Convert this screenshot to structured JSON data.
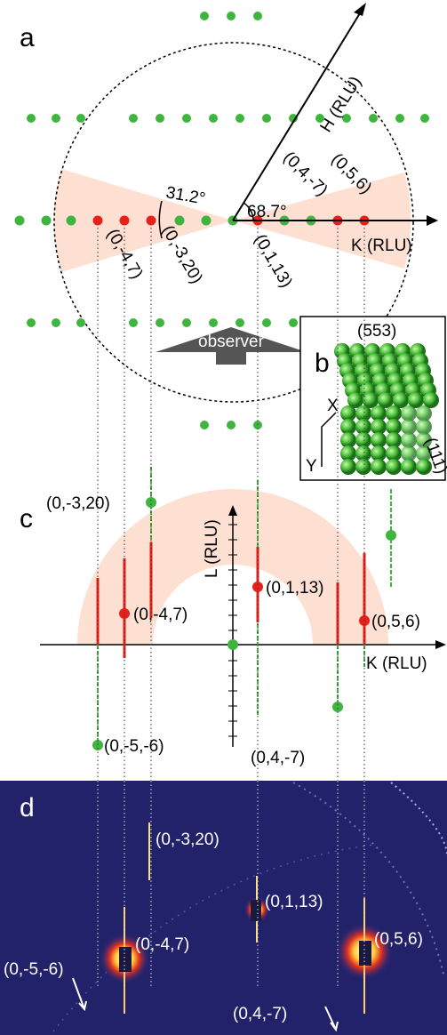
{
  "panel_a": {
    "label": "a",
    "h_axis": "H (RLU)",
    "k_axis": "K (RLU)",
    "angle_h": "68.7°",
    "angle_wedge": "31.2°",
    "observer": "observer",
    "reflections": [
      "(0,4,-7)",
      "(0,5,6)",
      "(0,-4,7)",
      "(0,-3,20)",
      "(0,1,13)"
    ]
  },
  "panel_b": {
    "label": "b",
    "facet_top": "(553)",
    "facet_side": "(111)",
    "axis_x": "X",
    "axis_y": "Y"
  },
  "panel_c": {
    "label": "c",
    "l_axis": "L (RLU)",
    "k_axis": "K (RLU)",
    "reflections": [
      "(0,-3,20)",
      "(0,-4,7)",
      "(0,1,13)",
      "(0,5,6)",
      "(0,-5,-6)",
      "(0,4,-7)"
    ]
  },
  "panel_d": {
    "label": "d",
    "reflections": [
      "(0,-3,20)",
      "(0,1,13)",
      "(0,-4,7)",
      "(0,5,6)",
      "(0,-5,-6)",
      "(0,4,-7)"
    ]
  }
}
